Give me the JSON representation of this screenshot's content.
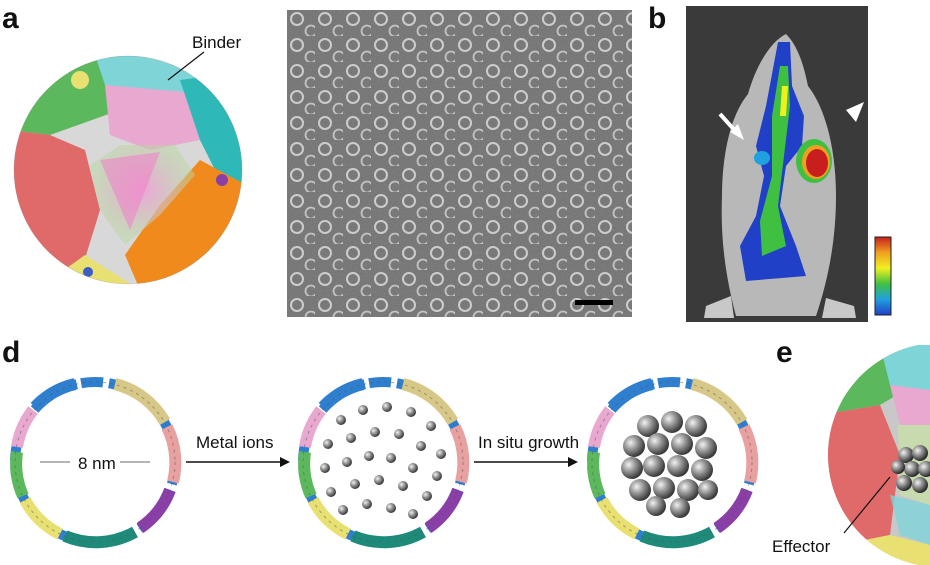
{
  "panels": {
    "a": "a",
    "b": "b",
    "d": "d",
    "e": "e"
  },
  "labels": {
    "binder": "Binder",
    "diameter": "8 nm",
    "metal_ions": "Metal ions",
    "in_situ_growth": "In situ growth",
    "effector": "Effector"
  },
  "colors": {
    "cage_subunits": [
      "#e06a6a",
      "#5cb85c",
      "#7fd4d8",
      "#e8a8d0",
      "#f08a1c",
      "#e8e070",
      "#2fb8b8",
      "#c0c0c0",
      "#1e8a7a",
      "#f4d2a8",
      "#8a3fa8",
      "#3a5cc8"
    ],
    "heat_scale": [
      "#c81e1e",
      "#f0a020",
      "#f0f020",
      "#40c040",
      "#20a0e0",
      "#2040c8"
    ],
    "nanoparticle": "#7a7a7a"
  }
}
